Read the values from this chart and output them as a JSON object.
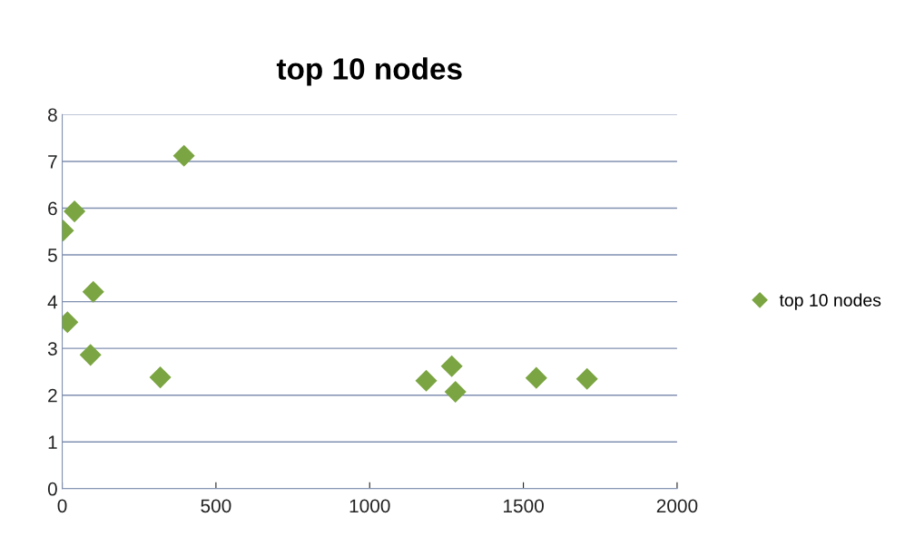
{
  "chart_data": {
    "type": "scatter",
    "title": "top 10 nodes",
    "series": [
      {
        "name": "top 10 nodes",
        "color": "#7ba542",
        "x": [
          3,
          40,
          17,
          101,
          92,
          319,
          396,
          1184,
          1267,
          1279,
          1542,
          1707
        ],
        "values": [
          5.52,
          5.93,
          3.56,
          4.21,
          2.86,
          2.38,
          7.12,
          2.31,
          2.62,
          2.07,
          2.37,
          2.35
        ]
      }
    ],
    "xlim": [
      0,
      2000
    ],
    "xticks": [
      0,
      500,
      1000,
      1500,
      2000
    ],
    "ylim": [
      0,
      8
    ],
    "yticks": [
      0,
      1,
      2,
      3,
      4,
      5,
      6,
      7,
      8
    ],
    "grid": "y",
    "legend": "right",
    "marker": "diamond"
  }
}
